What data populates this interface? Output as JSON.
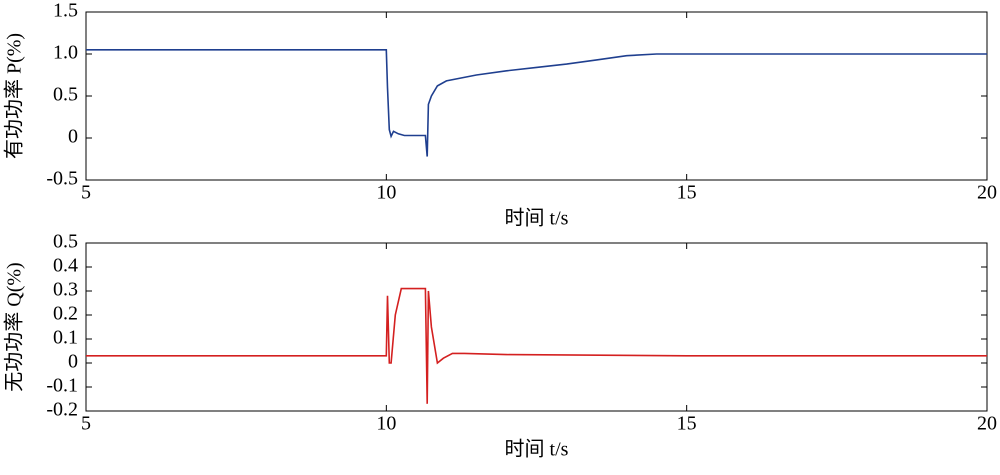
{
  "chart_data": [
    {
      "type": "line",
      "xlabel": "时间 t/s",
      "ylabel": "有功功率 P(%)",
      "xlim": [
        5,
        20
      ],
      "xticks": [
        5,
        10,
        15,
        20
      ],
      "ylim": [
        -0.5,
        1.5
      ],
      "yticks": [
        -0.5,
        0,
        0.5,
        {
          "value": 1,
          "label": "1.0"
        },
        1.5
      ],
      "x": [
        5,
        7,
        9,
        10,
        10.02,
        10.05,
        10.08,
        10.12,
        10.2,
        10.3,
        10.5,
        10.65,
        10.68,
        10.7,
        10.75,
        10.85,
        11,
        11.5,
        12,
        12.5,
        13,
        13.5,
        14,
        14.5,
        15,
        17,
        20
      ],
      "series": [
        {
          "color": "#1f3f8f",
          "values": [
            1.05,
            1.05,
            1.05,
            1.05,
            0.6,
            0.1,
            0.02,
            0.08,
            0.05,
            0.03,
            0.03,
            0.03,
            -0.22,
            0.4,
            0.5,
            0.62,
            0.68,
            0.75,
            0.8,
            0.84,
            0.88,
            0.93,
            0.98,
            1.0,
            1.0,
            1.0,
            1.0
          ]
        }
      ]
    },
    {
      "type": "line",
      "xlabel": "时间 t/s",
      "ylabel": "无功功率 Q(%)",
      "xlim": [
        5,
        20
      ],
      "xticks": [
        5,
        10,
        15,
        20
      ],
      "ylim": [
        -0.2,
        0.5
      ],
      "yticks": [
        -0.2,
        -0.1,
        0,
        0.1,
        0.2,
        0.3,
        0.4,
        0.5
      ],
      "x": [
        5,
        10,
        10.02,
        10.05,
        10.08,
        10.15,
        10.25,
        10.5,
        10.65,
        10.68,
        10.7,
        10.75,
        10.85,
        10.95,
        11.1,
        11.3,
        12,
        15,
        20
      ],
      "series": [
        {
          "color": "#d42020",
          "values": [
            0.03,
            0.03,
            0.28,
            0.0,
            0.0,
            0.2,
            0.31,
            0.31,
            0.31,
            -0.17,
            0.3,
            0.15,
            0.0,
            0.02,
            0.04,
            0.04,
            0.035,
            0.03,
            0.03
          ]
        }
      ]
    }
  ]
}
